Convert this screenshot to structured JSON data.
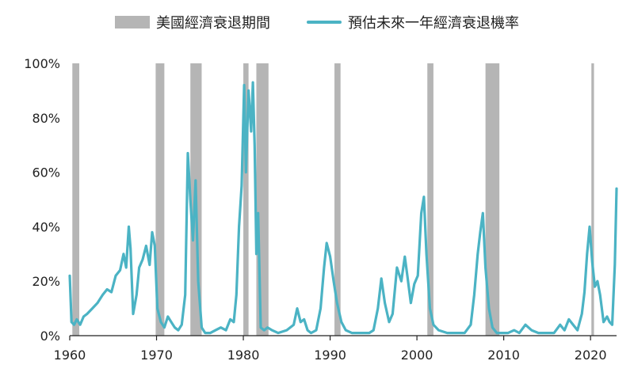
{
  "chart_data": {
    "type": "line",
    "title": "",
    "xlabel": "",
    "ylabel": "",
    "xlim": [
      1960,
      2023
    ],
    "ylim": [
      0,
      100
    ],
    "y_tick_labels": [
      "0%",
      "20%",
      "40%",
      "60%",
      "80%",
      "100%"
    ],
    "y_ticks": [
      0,
      20,
      40,
      60,
      80,
      100
    ],
    "x_tick_labels": [
      "1960",
      "1970",
      "1980",
      "1990",
      "2000",
      "2010",
      "2020"
    ],
    "x_ticks": [
      1960,
      1970,
      1980,
      1990,
      2000,
      2010,
      2020
    ],
    "grid": false,
    "legend": [
      {
        "label": "美國經濟衰退期間",
        "kind": "band",
        "color": "#b5b5b5"
      },
      {
        "label": "預估未來一年經濟衰退機率",
        "kind": "line",
        "color": "#4bb3c4"
      }
    ],
    "recessions": [
      {
        "start": 1960.3,
        "end": 1961.1
      },
      {
        "start": 1969.9,
        "end": 1970.9
      },
      {
        "start": 1973.9,
        "end": 1975.2
      },
      {
        "start": 1980.0,
        "end": 1980.6
      },
      {
        "start": 1981.5,
        "end": 1982.9
      },
      {
        "start": 1990.5,
        "end": 1991.2
      },
      {
        "start": 2001.2,
        "end": 2001.9
      },
      {
        "start": 2007.9,
        "end": 2009.5
      },
      {
        "start": 2020.1,
        "end": 2020.4
      }
    ],
    "series": [
      {
        "color": "#4bb3c4",
        "x": [
          1960.0,
          1960.2,
          1960.5,
          1960.8,
          1961.2,
          1961.6,
          1962.0,
          1962.6,
          1963.2,
          1963.8,
          1964.3,
          1964.8,
          1965.3,
          1965.8,
          1966.2,
          1966.5,
          1966.8,
          1967.0,
          1967.3,
          1967.7,
          1968.0,
          1968.4,
          1968.8,
          1969.2,
          1969.5,
          1969.8,
          1970.1,
          1970.5,
          1970.9,
          1971.3,
          1971.7,
          1972.1,
          1972.5,
          1972.9,
          1973.3,
          1973.6,
          1973.9,
          1974.2,
          1974.5,
          1974.8,
          1975.2,
          1975.6,
          1976.2,
          1976.8,
          1977.4,
          1978.0,
          1978.5,
          1978.9,
          1979.2,
          1979.5,
          1979.8,
          1980.1,
          1980.3,
          1980.6,
          1980.9,
          1981.1,
          1981.3,
          1981.5,
          1981.7,
          1982.0,
          1982.4,
          1982.8,
          1983.3,
          1984.0,
          1985.0,
          1985.8,
          1986.2,
          1986.6,
          1987.0,
          1987.4,
          1987.8,
          1988.4,
          1988.9,
          1989.3,
          1989.6,
          1990.0,
          1990.4,
          1990.8,
          1991.3,
          1991.8,
          1992.5,
          1993.5,
          1994.5,
          1995.0,
          1995.5,
          1995.9,
          1996.3,
          1996.8,
          1997.2,
          1997.7,
          1998.2,
          1998.6,
          1998.9,
          1999.3,
          1999.7,
          2000.1,
          2000.5,
          2000.8,
          2001.1,
          2001.5,
          2001.9,
          2002.5,
          2003.5,
          2004.5,
          2005.5,
          2006.2,
          2006.6,
          2007.0,
          2007.3,
          2007.6,
          2007.9,
          2008.3,
          2008.7,
          2009.2,
          2009.8,
          2010.5,
          2011.2,
          2011.8,
          2012.5,
          2013.2,
          2014.0,
          2015.0,
          2015.8,
          2016.5,
          2017.0,
          2017.5,
          2018.0,
          2018.5,
          2019.0,
          2019.3,
          2019.6,
          2019.9,
          2020.2,
          2020.5,
          2020.8,
          2021.1,
          2021.5,
          2021.9,
          2022.2,
          2022.5,
          2022.8,
          2023.0
        ],
        "y": [
          22,
          5,
          4,
          6,
          4,
          7,
          8,
          10,
          12,
          15,
          17,
          16,
          22,
          24,
          30,
          25,
          40,
          32,
          8,
          15,
          25,
          28,
          33,
          26,
          38,
          33,
          10,
          5,
          3,
          7,
          5,
          3,
          2,
          4,
          15,
          67,
          50,
          35,
          57,
          20,
          3,
          1,
          1,
          2,
          3,
          2,
          6,
          5,
          15,
          40,
          55,
          92,
          60,
          90,
          75,
          93,
          70,
          30,
          45,
          3,
          2,
          3,
          2,
          1,
          2,
          4,
          10,
          5,
          6,
          2,
          1,
          2,
          10,
          25,
          34,
          29,
          20,
          12,
          5,
          2,
          1,
          1,
          1,
          2,
          10,
          21,
          12,
          5,
          8,
          25,
          20,
          29,
          22,
          12,
          19,
          22,
          45,
          51,
          30,
          10,
          4,
          2,
          1,
          1,
          1,
          4,
          15,
          30,
          38,
          45,
          25,
          10,
          3,
          1,
          1,
          1,
          2,
          1,
          4,
          2,
          1,
          1,
          1,
          4,
          2,
          6,
          4,
          2,
          8,
          16,
          30,
          40,
          27,
          18,
          20,
          15,
          5,
          7,
          5,
          4,
          26,
          54
        ]
      }
    ]
  }
}
